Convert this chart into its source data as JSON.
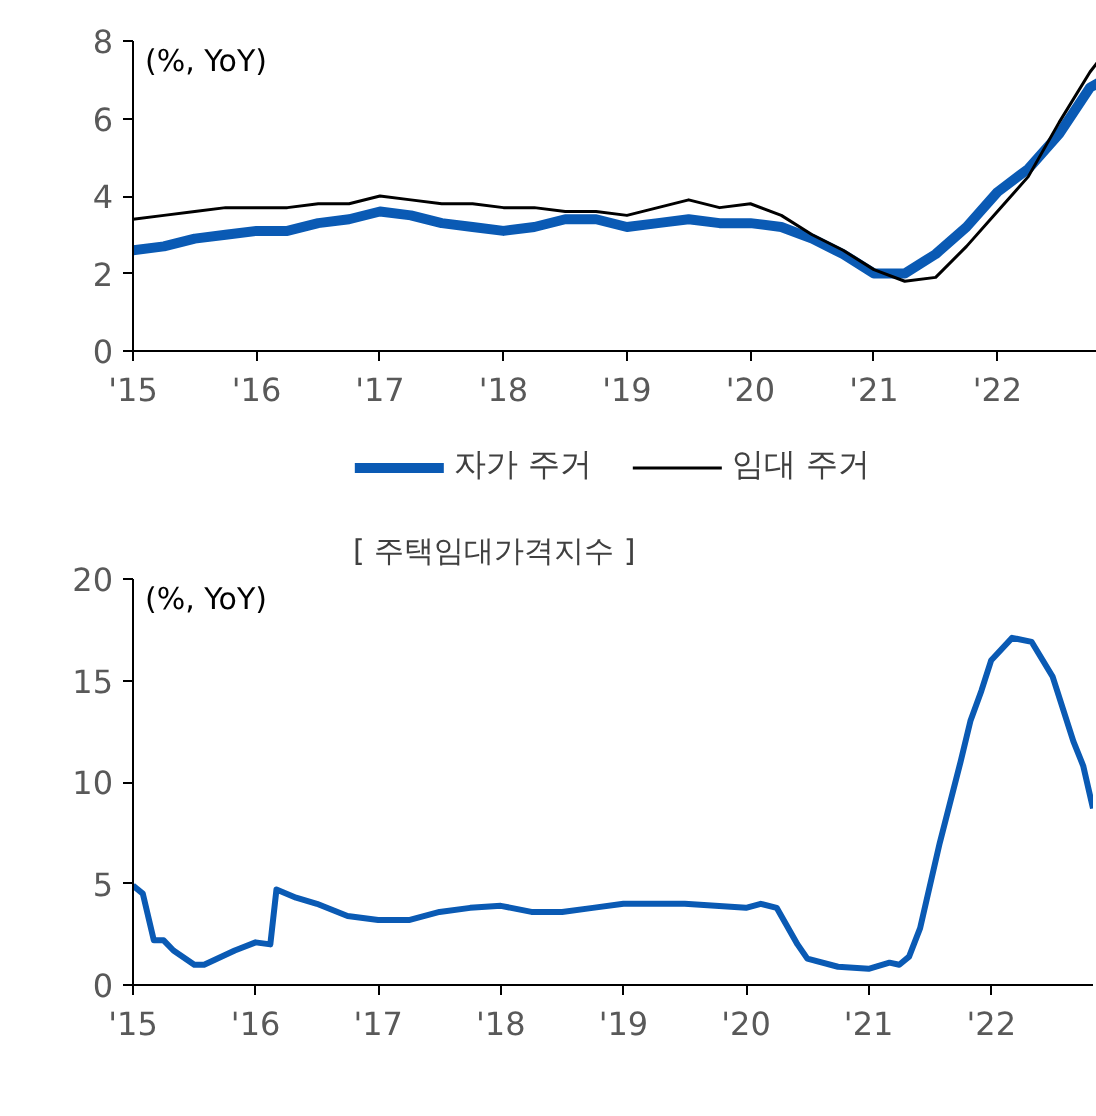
{
  "chart_data": [
    {
      "type": "line",
      "ylabel": "(%, YoY)",
      "legend": "bottom",
      "grid": false,
      "xlim": [
        2015,
        2022.92
      ],
      "ylim": [
        0,
        8
      ],
      "yticks": [
        0,
        2,
        4,
        6,
        8
      ],
      "xticks": [
        {
          "value": 2015,
          "label": "'15"
        },
        {
          "value": 2016,
          "label": "'16"
        },
        {
          "value": 2017,
          "label": "'17"
        },
        {
          "value": 2018,
          "label": "'18"
        },
        {
          "value": 2019,
          "label": "'19"
        },
        {
          "value": 2020,
          "label": "'20"
        },
        {
          "value": 2021,
          "label": "'21"
        },
        {
          "value": 2022,
          "label": "'22"
        }
      ],
      "series": [
        {
          "name": "자가 주거",
          "color": "#0a5ab4",
          "x": [
            2015,
            2015.25,
            2015.5,
            2015.75,
            2016,
            2016.25,
            2016.5,
            2016.75,
            2017,
            2017.25,
            2017.5,
            2017.75,
            2018,
            2018.25,
            2018.5,
            2018.75,
            2019,
            2019.25,
            2019.5,
            2019.75,
            2020,
            2020.25,
            2020.5,
            2020.75,
            2021,
            2021.25,
            2021.5,
            2021.75,
            2022,
            2022.25,
            2022.5,
            2022.75,
            2022.92
          ],
          "values": [
            2.6,
            2.7,
            2.9,
            3.0,
            3.1,
            3.1,
            3.3,
            3.4,
            3.6,
            3.5,
            3.3,
            3.2,
            3.1,
            3.2,
            3.4,
            3.4,
            3.2,
            3.3,
            3.4,
            3.3,
            3.3,
            3.2,
            2.9,
            2.5,
            2.0,
            2.0,
            2.5,
            3.2,
            4.1,
            4.7,
            5.6,
            6.8,
            7.1
          ]
        },
        {
          "name": "임대 주거",
          "color": "#000000",
          "x": [
            2015,
            2015.25,
            2015.5,
            2015.75,
            2016,
            2016.25,
            2016.5,
            2016.75,
            2017,
            2017.25,
            2017.5,
            2017.75,
            2018,
            2018.25,
            2018.5,
            2018.75,
            2019,
            2019.25,
            2019.5,
            2019.75,
            2020,
            2020.25,
            2020.5,
            2020.75,
            2021,
            2021.25,
            2021.5,
            2021.75,
            2022,
            2022.25,
            2022.5,
            2022.75,
            2022.92
          ],
          "values": [
            3.4,
            3.5,
            3.6,
            3.7,
            3.7,
            3.7,
            3.8,
            3.8,
            4.0,
            3.9,
            3.8,
            3.8,
            3.7,
            3.7,
            3.6,
            3.6,
            3.5,
            3.7,
            3.9,
            3.7,
            3.8,
            3.5,
            3.0,
            2.6,
            2.1,
            1.8,
            1.9,
            2.7,
            3.6,
            4.5,
            5.9,
            7.2,
            7.9
          ]
        }
      ]
    },
    {
      "type": "line",
      "title": "[ 주택임대가격지수 ]",
      "ylabel": "(%, YoY)",
      "grid": false,
      "xlim": [
        2015,
        2022.83
      ],
      "ylim": [
        0,
        20
      ],
      "yticks": [
        0,
        5,
        10,
        15,
        20
      ],
      "xticks": [
        {
          "value": 2015,
          "label": "'15"
        },
        {
          "value": 2016,
          "label": "'16"
        },
        {
          "value": 2017,
          "label": "'17"
        },
        {
          "value": 2018,
          "label": "'18"
        },
        {
          "value": 2019,
          "label": "'19"
        },
        {
          "value": 2020,
          "label": "'20"
        },
        {
          "value": 2021,
          "label": "'21"
        },
        {
          "value": 2022,
          "label": "'22"
        }
      ],
      "series": [
        {
          "color": "#0a5ab4",
          "x": [
            2015,
            2015.08,
            2015.17,
            2015.25,
            2015.33,
            2015.5,
            2015.58,
            2015.83,
            2016,
            2016.12,
            2016.17,
            2016.33,
            2016.5,
            2016.75,
            2017,
            2017.25,
            2017.5,
            2017.75,
            2018,
            2018.25,
            2018.5,
            2018.75,
            2019,
            2019.5,
            2019.75,
            2020,
            2020.12,
            2020.25,
            2020.42,
            2020.5,
            2020.75,
            2021,
            2021.17,
            2021.25,
            2021.33,
            2021.42,
            2021.58,
            2021.75,
            2021.83,
            2021.92,
            2022,
            2022.17,
            2022.33,
            2022.5,
            2022.67,
            2022.75,
            2022.83
          ],
          "values": [
            4.9,
            4.5,
            2.2,
            2.2,
            1.7,
            1.0,
            1.0,
            1.7,
            2.1,
            2.0,
            4.7,
            4.3,
            4.0,
            3.4,
            3.2,
            3.2,
            3.6,
            3.8,
            3.9,
            3.6,
            3.6,
            3.8,
            4.0,
            4.0,
            3.9,
            3.8,
            4.0,
            3.8,
            2.0,
            1.3,
            0.9,
            0.8,
            1.1,
            1.0,
            1.4,
            2.8,
            7.0,
            11.0,
            13.0,
            14.5,
            16.0,
            17.1,
            16.9,
            15.2,
            12.0,
            10.8,
            8.7
          ]
        }
      ]
    }
  ]
}
